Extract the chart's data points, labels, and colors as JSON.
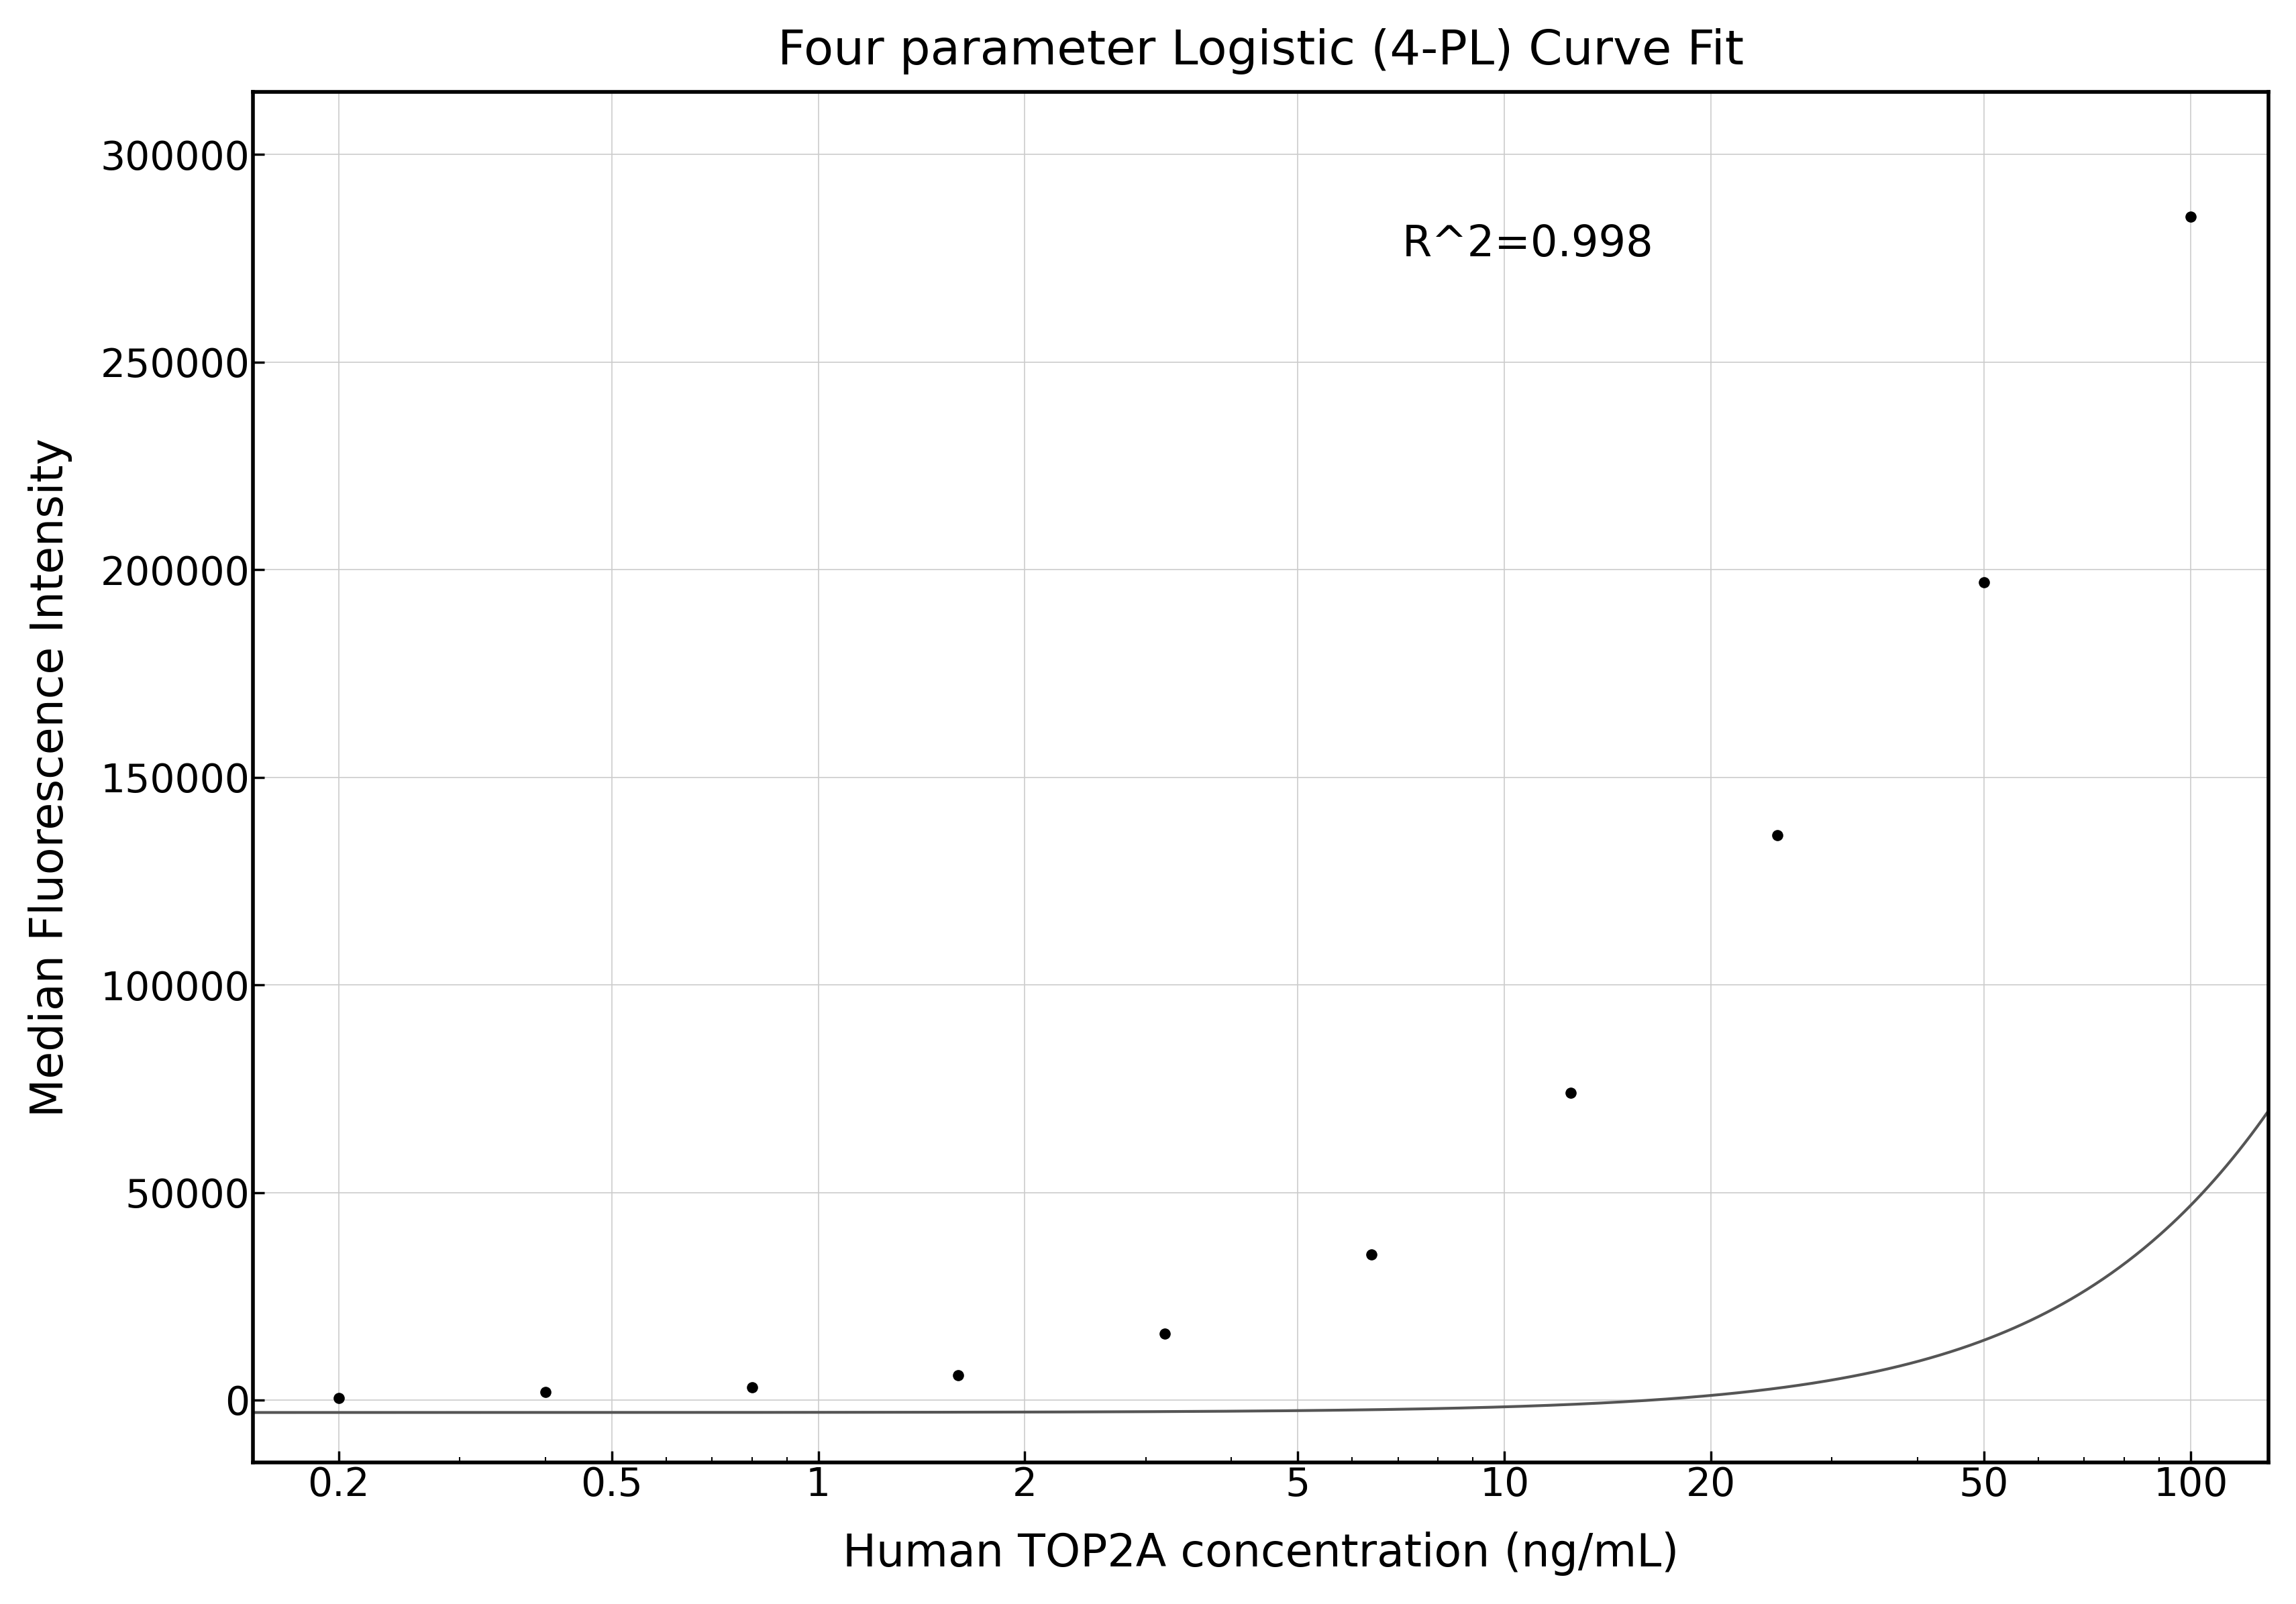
{
  "title": "Four parameter Logistic (4-PL) Curve Fit",
  "xlabel": "Human TOP2A concentration (ng/mL)",
  "ylabel": "Median Fluorescence Intensity",
  "r_squared": "R^2=0.998",
  "scatter_x": [
    0.2,
    0.4,
    0.8,
    1.6,
    3.2,
    6.4,
    12.5,
    25,
    50,
    100
  ],
  "scatter_y": [
    500,
    2000,
    3000,
    6000,
    16000,
    35000,
    74000,
    136000,
    197000,
    285000
  ],
  "xscale": "log",
  "xlim": [
    0.15,
    130
  ],
  "ylim": [
    -15000,
    315000
  ],
  "xticks": [
    0.2,
    0.5,
    1,
    2,
    5,
    10,
    20,
    50,
    100
  ],
  "yticks": [
    0,
    50000,
    100000,
    150000,
    200000,
    250000,
    300000
  ],
  "ytick_labels": [
    "0",
    "50000",
    "100000",
    "150000",
    "200000",
    "250000",
    "300000"
  ],
  "4PL_A": -3000,
  "4PL_B": 1.6,
  "4PL_C": 450,
  "4PL_D": 600000,
  "grid_color": "#cccccc",
  "scatter_color": "#000000",
  "curve_color": "#555555",
  "scatter_size": 120,
  "background_color": "#ffffff",
  "title_fontsize": 52,
  "label_fontsize": 48,
  "tick_fontsize": 42,
  "annotation_fontsize": 46,
  "linewidth": 3.0,
  "spine_linewidth": 4.0
}
